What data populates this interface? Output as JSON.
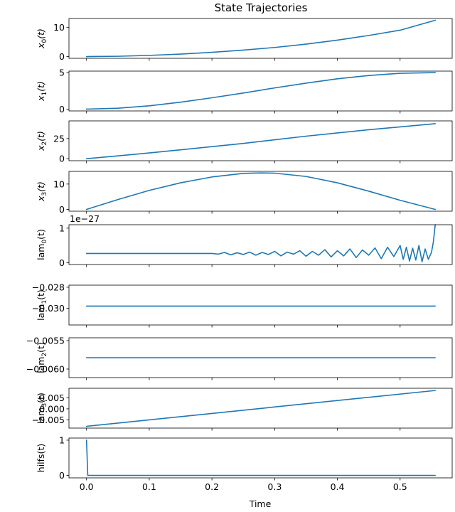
{
  "chart_data": {
    "type": "line",
    "title": "State Trajectories",
    "xlabel": "Time",
    "xlim": [
      -0.028,
      0.583
    ],
    "x_ticks": [
      0.0,
      0.1,
      0.2,
      0.3,
      0.4,
      0.5
    ],
    "x_tick_labels": [
      "0.0",
      "0.1",
      "0.2",
      "0.3",
      "0.4",
      "0.5"
    ],
    "line_color": "#1f77b4",
    "panels": [
      {
        "name": "x0",
        "ylabel_base": "x",
        "ylabel_sub": "0",
        "ylabel_suffix": "(t)",
        "ylabel_italic": true,
        "ylim": [
          -0.6,
          13.0
        ],
        "y_ticks": [
          0,
          10
        ],
        "y_tick_labels": [
          "0",
          "10"
        ],
        "x": [
          0.0,
          0.05,
          0.1,
          0.15,
          0.2,
          0.25,
          0.3,
          0.35,
          0.4,
          0.45,
          0.5,
          0.556
        ],
        "y": [
          0.0,
          0.1,
          0.4,
          0.85,
          1.45,
          2.2,
          3.1,
          4.25,
          5.6,
          7.2,
          9.0,
          12.4
        ]
      },
      {
        "name": "x1",
        "ylabel_base": "x",
        "ylabel_sub": "1",
        "ylabel_suffix": "(t)",
        "ylabel_italic": true,
        "ylim": [
          -0.25,
          5.2
        ],
        "y_ticks": [
          0,
          5
        ],
        "y_tick_labels": [
          "0",
          "5"
        ],
        "x": [
          0.0,
          0.05,
          0.1,
          0.15,
          0.2,
          0.25,
          0.3,
          0.35,
          0.4,
          0.45,
          0.5,
          0.556
        ],
        "y": [
          0.0,
          0.12,
          0.45,
          0.95,
          1.55,
          2.2,
          2.9,
          3.55,
          4.15,
          4.6,
          4.9,
          5.0
        ]
      },
      {
        "name": "x2",
        "ylabel_base": "x",
        "ylabel_sub": "2",
        "ylabel_suffix": "(t)",
        "ylabel_italic": true,
        "ylim": [
          -2.5,
          47.0
        ],
        "y_ticks": [
          0,
          25
        ],
        "y_tick_labels": [
          "0",
          "25"
        ],
        "x": [
          0.0,
          0.05,
          0.1,
          0.15,
          0.2,
          0.25,
          0.3,
          0.35,
          0.4,
          0.45,
          0.5,
          0.556
        ],
        "y": [
          0.0,
          3.5,
          7.2,
          11.0,
          15.0,
          19.0,
          23.5,
          28.0,
          32.0,
          36.0,
          39.5,
          43.5
        ]
      },
      {
        "name": "x3",
        "ylabel_base": "x",
        "ylabel_sub": "3",
        "ylabel_suffix": "(t)",
        "ylabel_italic": true,
        "ylim": [
          -0.7,
          15.0
        ],
        "y_ticks": [
          0,
          10
        ],
        "y_tick_labels": [
          "0",
          "10"
        ],
        "x": [
          0.0,
          0.05,
          0.1,
          0.15,
          0.2,
          0.25,
          0.278,
          0.3,
          0.35,
          0.4,
          0.45,
          0.5,
          0.556
        ],
        "y": [
          0.0,
          3.9,
          7.5,
          10.5,
          12.8,
          14.2,
          14.4,
          14.3,
          13.0,
          10.5,
          7.2,
          3.6,
          0.0
        ]
      },
      {
        "name": "lam0",
        "ylabel_base": "lam",
        "ylabel_sub": "0",
        "ylabel_suffix": "(t)",
        "ylabel_italic": false,
        "offset_text": "1e−27",
        "ylim": [
          -0.05,
          1.1
        ],
        "y_ticks": [
          0,
          1
        ],
        "y_tick_labels": [
          "0",
          "1"
        ],
        "x": [
          0.0,
          0.2,
          0.21,
          0.22,
          0.23,
          0.24,
          0.25,
          0.26,
          0.27,
          0.28,
          0.29,
          0.3,
          0.31,
          0.32,
          0.33,
          0.34,
          0.35,
          0.36,
          0.37,
          0.38,
          0.39,
          0.4,
          0.41,
          0.42,
          0.43,
          0.44,
          0.45,
          0.46,
          0.47,
          0.48,
          0.49,
          0.5,
          0.505,
          0.51,
          0.515,
          0.52,
          0.525,
          0.53,
          0.535,
          0.54,
          0.545,
          0.55,
          0.553,
          0.556
        ],
        "y": [
          0.27,
          0.27,
          0.25,
          0.3,
          0.23,
          0.29,
          0.24,
          0.31,
          0.22,
          0.3,
          0.24,
          0.33,
          0.2,
          0.31,
          0.25,
          0.35,
          0.19,
          0.33,
          0.22,
          0.38,
          0.17,
          0.35,
          0.2,
          0.4,
          0.15,
          0.37,
          0.22,
          0.43,
          0.12,
          0.45,
          0.18,
          0.5,
          0.1,
          0.45,
          0.05,
          0.42,
          0.08,
          0.5,
          0.03,
          0.4,
          0.1,
          0.3,
          0.6,
          1.1
        ]
      },
      {
        "name": "lam1",
        "ylabel_base": "lam",
        "ylabel_sub": "1",
        "ylabel_suffix": "(t)",
        "ylabel_italic": false,
        "ylim": [
          -0.0316,
          -0.0278
        ],
        "y_ticks": [
          -0.028,
          -0.03
        ],
        "y_tick_labels": [
          "−0.028",
          "−0.030"
        ],
        "x": [
          0.0,
          0.556
        ],
        "y": [
          -0.0298,
          -0.0298
        ]
      },
      {
        "name": "lam2",
        "ylabel_base": "lam",
        "ylabel_sub": "2",
        "ylabel_suffix": "(t)",
        "ylabel_italic": false,
        "ylim": [
          -0.00615,
          -0.00545
        ],
        "y_ticks": [
          -0.0055,
          -0.006
        ],
        "y_tick_labels": [
          "−0.0055",
          "−0.0060"
        ],
        "x": [
          0.0,
          0.556
        ],
        "y": [
          -0.0058,
          -0.0058
        ]
      },
      {
        "name": "lam3",
        "ylabel_base": "lam",
        "ylabel_sub": "3",
        "ylabel_suffix": "(t)",
        "ylabel_italic": false,
        "ylim": [
          -0.0087,
          0.0093
        ],
        "y_ticks": [
          0.005,
          0.0,
          -0.005
        ],
        "y_tick_labels": [
          "0.005",
          "0.000",
          "−0.005"
        ],
        "x": [
          0.0,
          0.556
        ],
        "y": [
          -0.0079,
          0.0083
        ]
      },
      {
        "name": "hilfs",
        "ylabel_base": "hilfs",
        "ylabel_sub": "",
        "ylabel_suffix": "(t)",
        "ylabel_italic": false,
        "ylim": [
          -0.07,
          1.06
        ],
        "y_ticks": [
          0,
          1
        ],
        "y_tick_labels": [
          "0",
          "1"
        ],
        "x": [
          0.0,
          0.002,
          0.556
        ],
        "y": [
          1.0,
          0.0,
          0.0
        ]
      }
    ]
  }
}
